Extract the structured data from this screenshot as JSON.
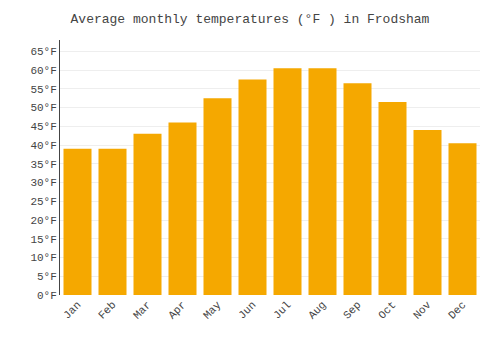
{
  "chart_data": {
    "type": "bar",
    "title": "Average monthly temperatures (°F ) in Frodsham",
    "categories": [
      "Jan",
      "Feb",
      "Mar",
      "Apr",
      "May",
      "Jun",
      "Jul",
      "Aug",
      "Sep",
      "Oct",
      "Nov",
      "Dec"
    ],
    "values": [
      39,
      39,
      43,
      46,
      52.5,
      57.5,
      60.5,
      60.5,
      56.5,
      51.5,
      44,
      40.5
    ],
    "color": "#F5A800",
    "ylim": [
      0,
      68
    ],
    "yticks": [
      {
        "value": 0,
        "label": "0°F"
      },
      {
        "value": 5,
        "label": "5°F"
      },
      {
        "value": 10,
        "label": "10°F"
      },
      {
        "value": 15,
        "label": "15°F"
      },
      {
        "value": 20,
        "label": "20°F"
      },
      {
        "value": 25,
        "label": "25°F"
      },
      {
        "value": 30,
        "label": "30°F"
      },
      {
        "value": 35,
        "label": "35°F"
      },
      {
        "value": 40,
        "label": "40°F"
      },
      {
        "value": 45,
        "label": "45°F"
      },
      {
        "value": 50,
        "label": "50°F"
      },
      {
        "value": 55,
        "label": "55°F"
      },
      {
        "value": 60,
        "label": "60°F"
      },
      {
        "value": 65,
        "label": "65°F"
      }
    ],
    "grid": true
  }
}
